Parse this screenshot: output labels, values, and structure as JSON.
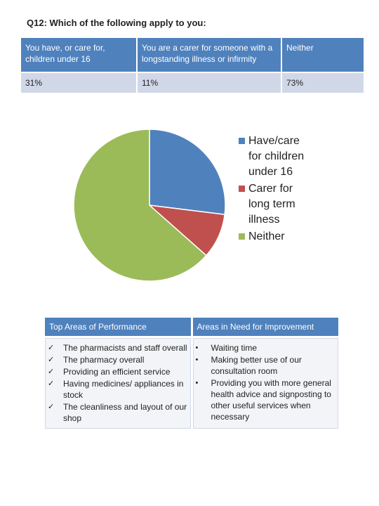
{
  "question": "Q12: Which of the following apply to you:",
  "survey_table": {
    "headers": [
      "You have, or care for, children under 16",
      "You are a carer for someone with a longstanding illness or infirmity",
      "Neither"
    ],
    "values": [
      "31%",
      "11%",
      "73%"
    ]
  },
  "chart_data": {
    "type": "pie",
    "title": "",
    "categories": [
      "Have/care for children under 16",
      "Carer for long term illness",
      "Neither"
    ],
    "values": [
      31,
      11,
      73
    ],
    "colors": [
      "#4f81bd",
      "#c0504d",
      "#9bbb59"
    ],
    "legend_placement": "right"
  },
  "areas": {
    "performance_header": "Top Areas of Performance",
    "improvement_header": "Areas in Need for Improvement",
    "performance_bullet": "✓",
    "improvement_bullet": "•",
    "performance_items": [
      "The pharmacists and staff overall",
      "The pharmacy overall",
      "Providing an efficient service",
      "Having medicines/ appliances in stock",
      "The cleanliness and layout of our shop"
    ],
    "improvement_items": [
      "Waiting time",
      "Making better use of our consultation room",
      "Providing you with more general health advice and signposting to other useful services when necessary"
    ]
  }
}
